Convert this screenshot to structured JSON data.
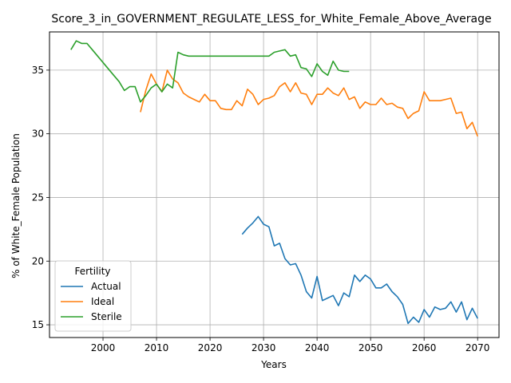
{
  "chart_data": {
    "type": "line",
    "title": "Score_3_in_GOVERNMENT_REGULATE_LESS_for_White_Female_Above_Average",
    "xlabel": "Years",
    "ylabel": "% of White_Female Population",
    "xlim": [
      1990,
      2074
    ],
    "ylim": [
      14,
      38
    ],
    "xticks": [
      2000,
      2010,
      2020,
      2030,
      2040,
      2050,
      2060,
      2070
    ],
    "yticks": [
      15,
      20,
      25,
      30,
      35
    ],
    "grid": true,
    "legend_title": "Fertility",
    "legend_position": "lower-left",
    "series": [
      {
        "name": "Actual",
        "color": "#1f77b4",
        "x": [
          2026,
          2027,
          2028,
          2029,
          2030,
          2031,
          2032,
          2033,
          2034,
          2035,
          2036,
          2037,
          2038,
          2039,
          2040,
          2041,
          2042,
          2043,
          2044,
          2045,
          2046,
          2047,
          2048,
          2049,
          2050,
          2051,
          2052,
          2053,
          2054,
          2055,
          2056,
          2057,
          2058,
          2059,
          2060,
          2061,
          2062,
          2063,
          2064,
          2065,
          2066,
          2067,
          2068,
          2069,
          2070
        ],
        "y": [
          22.1,
          22.6,
          23.0,
          23.5,
          22.9,
          22.7,
          21.2,
          21.4,
          20.2,
          19.7,
          19.8,
          18.9,
          17.6,
          17.1,
          18.8,
          16.9,
          17.1,
          17.3,
          16.5,
          17.5,
          17.2,
          18.9,
          18.4,
          18.9,
          18.6,
          17.9,
          17.9,
          18.2,
          17.6,
          17.2,
          16.6,
          15.1,
          15.6,
          15.2,
          16.2,
          15.6,
          16.4,
          16.2,
          16.3,
          16.8,
          16.0,
          16.8,
          15.4,
          16.3,
          15.5
        ]
      },
      {
        "name": "Ideal",
        "color": "#ff7f0e",
        "x": [
          2007,
          2008,
          2009,
          2010,
          2011,
          2012,
          2013,
          2014,
          2015,
          2016,
          2017,
          2018,
          2019,
          2020,
          2021,
          2022,
          2023,
          2024,
          2025,
          2026,
          2027,
          2028,
          2029,
          2030,
          2031,
          2032,
          2033,
          2034,
          2035,
          2036,
          2037,
          2038,
          2039,
          2040,
          2041,
          2042,
          2043,
          2044,
          2045,
          2046,
          2047,
          2048,
          2049,
          2050,
          2051,
          2052,
          2053,
          2054,
          2055,
          2056,
          2057,
          2058,
          2059,
          2060,
          2061,
          2062,
          2063,
          2064,
          2065,
          2066,
          2067,
          2068,
          2069,
          2070
        ],
        "y": [
          31.7,
          33.4,
          34.7,
          33.9,
          33.3,
          35.0,
          34.3,
          34.0,
          33.2,
          32.9,
          32.7,
          32.5,
          33.1,
          32.6,
          32.6,
          32.0,
          31.9,
          31.9,
          32.6,
          32.2,
          33.5,
          33.1,
          32.3,
          32.7,
          32.8,
          33.0,
          33.7,
          34.0,
          33.3,
          34.0,
          33.2,
          33.1,
          32.3,
          33.1,
          33.1,
          33.6,
          33.2,
          33.0,
          33.6,
          32.7,
          32.9,
          32.0,
          32.5,
          32.3,
          32.3,
          32.8,
          32.3,
          32.4,
          32.1,
          32.0,
          31.2,
          31.6,
          31.8,
          33.3,
          32.6,
          32.6,
          32.6,
          32.7,
          32.8,
          31.6,
          31.7,
          30.4,
          30.9,
          29.8
        ]
      },
      {
        "name": "Sterile",
        "color": "#2ca02c",
        "x": [
          1994,
          1995,
          1996,
          1997,
          1998,
          1999,
          2000,
          2001,
          2002,
          2003,
          2004,
          2005,
          2006,
          2007,
          2008,
          2009,
          2010,
          2011,
          2012,
          2013,
          2014,
          2015,
          2016,
          2017,
          2018,
          2019,
          2020,
          2021,
          2022,
          2023,
          2024,
          2025,
          2026,
          2027,
          2028,
          2029,
          2030,
          2031,
          2032,
          2033,
          2034,
          2035,
          2036,
          2037,
          2038,
          2039,
          2040,
          2041,
          2042,
          2043,
          2044,
          2045,
          2046
        ],
        "y": [
          36.6,
          37.3,
          37.1,
          37.1,
          36.6,
          36.1,
          35.6,
          35.1,
          34.6,
          34.1,
          33.4,
          33.7,
          33.7,
          32.5,
          33.0,
          33.6,
          33.9,
          33.3,
          33.9,
          33.6,
          36.4,
          36.2,
          36.1,
          36.1,
          36.1,
          36.1,
          36.1,
          36.1,
          36.1,
          36.1,
          36.1,
          36.1,
          36.1,
          36.1,
          36.1,
          36.1,
          36.1,
          36.1,
          36.4,
          36.5,
          36.6,
          36.1,
          36.2,
          35.2,
          35.1,
          34.5,
          35.5,
          34.9,
          34.6,
          35.7,
          35.0,
          34.9,
          34.9
        ]
      }
    ]
  }
}
